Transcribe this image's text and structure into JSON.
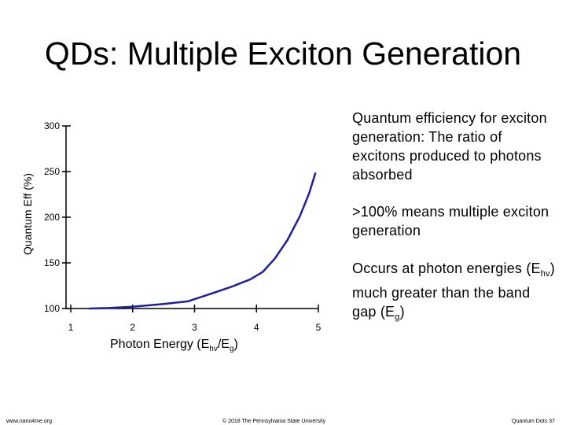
{
  "slide": {
    "title": "QDs: Multiple Exciton Generation",
    "notes": [
      {
        "text": "Quantum efficiency for exciton generation: The ratio of excitons produced to photons absorbed"
      },
      {
        "text": ">100% means multiple exciton generation"
      },
      {
        "pre": "Occurs at photon energies (E",
        "sub1": "hv",
        "mid": ") much greater than the band gap (E",
        "sub2": "g",
        "post": ")"
      }
    ],
    "footer_left": "www.nano4me.org",
    "footer_center": "© 2018 The Pennsylvania State University",
    "footer_right": "Quantum Dots 37"
  },
  "chart_data": {
    "type": "line",
    "title": "",
    "ylabel": "Quantum Eff (%)",
    "xlabel": {
      "pre": "Photon Energy (E",
      "sub1": "hv",
      "mid": "/E",
      "sub2": "g",
      "post": ")"
    },
    "xlim": [
      1,
      5
    ],
    "ylim": [
      100,
      300
    ],
    "x_ticks": [
      1,
      2,
      3,
      4,
      5
    ],
    "y_ticks": [
      100,
      150,
      200,
      250,
      300
    ],
    "grid": false,
    "legend": "none",
    "series": [
      {
        "color": "#1f1fa0",
        "x": [
          1.3,
          1.6,
          2.0,
          2.5,
          2.9,
          3.3,
          3.6,
          3.9,
          4.1,
          4.3,
          4.5,
          4.7,
          4.85,
          4.95
        ],
        "y": [
          100,
          100.5,
          102,
          105,
          108,
          117,
          124,
          132,
          140,
          155,
          175,
          201,
          226,
          248
        ]
      }
    ]
  }
}
